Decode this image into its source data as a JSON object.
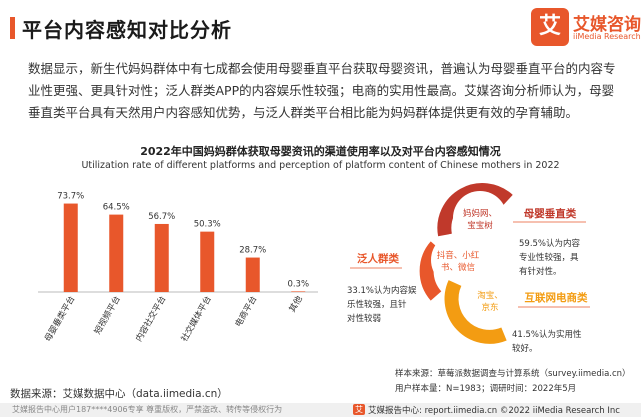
{
  "header": {
    "title": "平台内容感知对比分析",
    "logo_mark": "艾",
    "logo_cn": "艾媒咨询",
    "logo_en": "iiMedia Research"
  },
  "summary": "数据显示，新生代妈妈群体中有七成都会使用母婴垂直平台获取母婴资讯，普遍认为母婴垂直平台的内容专业性更强、更具针对性；泛人群类APP的内容娱乐性较强；电商的实用性最高。艾媒咨询分析师认为，母婴垂直类平台具有天然用户内容感知优势，与泛人群类平台相比能为妈妈群体提供更有效的孕育辅助。",
  "chart_data": {
    "type": "bar",
    "title": "2022年中国妈妈群体获取母婴资讯的渠道使用率以及对平台内容感知情况",
    "subtitle": "Utilization rate of different platforms and perception of platform content of Chinese mothers in 2022",
    "categories": [
      "母婴垂类平台",
      "短视频平台",
      "内容社交平台",
      "社交媒体平台",
      "电商平台",
      "其他"
    ],
    "values": [
      73.7,
      64.5,
      56.7,
      50.3,
      28.7,
      0.3
    ],
    "value_labels": [
      "73.7%",
      "64.5%",
      "56.7%",
      "50.3%",
      "28.7%",
      "0.3%"
    ],
    "ylim": [
      0,
      80
    ],
    "xlabel": "",
    "ylabel": "",
    "bar_color": "#e8572b"
  },
  "diagram": {
    "categories": [
      {
        "title": "母婴垂直类",
        "platforms": [
          "妈妈网、",
          "宝宝树"
        ],
        "desc": [
          "59.5%认为内容",
          "专业性较强，具",
          "有针对性。"
        ],
        "color": "#c0392b"
      },
      {
        "title": "泛人群类",
        "platforms": [
          "抖音、小红",
          "书、微信"
        ],
        "desc": [
          "33.1%认为内容娱",
          "乐性较强，且针",
          "对性较弱"
        ],
        "color": "#e8572b"
      },
      {
        "title": "互联网电商类",
        "platforms": [
          "淘宝、",
          "京东"
        ],
        "desc": [
          "41.5%认为实用性",
          "较好。"
        ],
        "color": "#f39c12"
      }
    ]
  },
  "source": "数据来源：艾媒数据中心（data.iimedia.cn）",
  "notes": [
    "样本来源：草莓派数据调查与计算系统（survey.iimedia.cn）",
    "用户样本量：N=1983；调研时间：2022年5月"
  ],
  "footer": {
    "left": "艾媒报告中心用户187****4906专享 尊重版权，严禁盗改、转传等侵权行为",
    "logo": "艾",
    "right": "艾媒报告中心: report.iimedia.cn ©2022  iiMedia Research  Inc"
  }
}
